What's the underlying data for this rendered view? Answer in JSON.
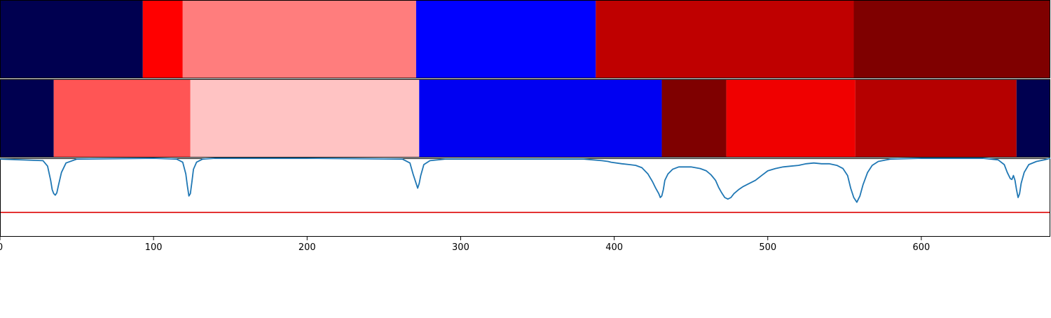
{
  "chart_data": {
    "type": "heatmap",
    "title": "",
    "xlabel": "",
    "ylabel": "",
    "xlim": [
      0,
      684
    ],
    "x_ticks": [
      0,
      100,
      200,
      300,
      400,
      500,
      600
    ],
    "x_tick_labels": [
      "0",
      "100",
      "200",
      "300",
      "400",
      "500",
      "600"
    ],
    "grid": false,
    "legend": "none",
    "segment_rows": [
      {
        "segments": [
          {
            "start": 0,
            "end": 93,
            "color": "#000050"
          },
          {
            "start": 93,
            "end": 119,
            "color": "#ff0000"
          },
          {
            "start": 119,
            "end": 271,
            "color": "#ff7d7d"
          },
          {
            "start": 271,
            "end": 388,
            "color": "#0000ff"
          },
          {
            "start": 388,
            "end": 556,
            "color": "#bf0000"
          },
          {
            "start": 556,
            "end": 684,
            "color": "#7f0000"
          }
        ]
      },
      {
        "segments": [
          {
            "start": 0,
            "end": 35,
            "color": "#000050"
          },
          {
            "start": 35,
            "end": 124,
            "color": "#ff5555"
          },
          {
            "start": 124,
            "end": 273,
            "color": "#ffc3c3"
          },
          {
            "start": 273,
            "end": 431,
            "color": "#0000f2"
          },
          {
            "start": 431,
            "end": 473,
            "color": "#7f0000"
          },
          {
            "start": 473,
            "end": 557,
            "color": "#f00000"
          },
          {
            "start": 557,
            "end": 662,
            "color": "#b50000"
          },
          {
            "start": 662,
            "end": 684,
            "color": "#000050"
          }
        ]
      }
    ],
    "line_panel": {
      "ylim": [
        0,
        1
      ],
      "threshold": 0.31,
      "threshold_color": "#dd0000",
      "line_color": "#1f77b4",
      "series": [
        {
          "x": [
            0,
            28,
            31,
            33,
            34,
            35,
            36,
            37,
            38,
            40,
            43,
            50,
            100,
            115,
            119,
            121,
            122,
            123,
            124,
            125,
            126,
            128,
            132,
            140,
            200,
            262,
            267,
            269,
            271,
            272,
            273,
            274,
            276,
            280,
            290,
            380,
            392,
            396,
            398,
            405,
            410,
            414,
            418,
            422,
            425,
            427,
            429,
            430,
            431,
            432,
            433,
            435,
            438,
            442,
            446,
            450,
            456,
            460,
            463,
            466,
            468,
            470,
            472,
            474,
            476,
            478,
            481,
            484,
            488,
            492,
            496,
            500,
            505,
            510,
            515,
            520,
            525,
            530,
            535,
            540,
            545,
            549,
            552,
            554,
            556,
            558,
            560,
            562,
            565,
            568,
            572,
            580,
            600,
            640,
            650,
            654,
            656,
            658,
            659,
            660,
            661,
            662,
            663,
            664,
            665,
            667,
            670,
            675,
            680,
            684
          ],
          "y": [
            0.99,
            0.97,
            0.9,
            0.72,
            0.6,
            0.55,
            0.53,
            0.56,
            0.65,
            0.82,
            0.94,
            0.99,
            1.0,
            0.99,
            0.95,
            0.8,
            0.65,
            0.52,
            0.55,
            0.7,
            0.86,
            0.95,
            0.99,
            1.0,
            1.0,
            0.99,
            0.94,
            0.8,
            0.68,
            0.62,
            0.68,
            0.78,
            0.92,
            0.97,
            0.99,
            0.99,
            0.97,
            0.96,
            0.95,
            0.93,
            0.92,
            0.91,
            0.88,
            0.8,
            0.7,
            0.62,
            0.55,
            0.5,
            0.52,
            0.6,
            0.72,
            0.8,
            0.86,
            0.89,
            0.89,
            0.89,
            0.87,
            0.84,
            0.79,
            0.72,
            0.63,
            0.56,
            0.5,
            0.48,
            0.5,
            0.55,
            0.6,
            0.64,
            0.68,
            0.72,
            0.78,
            0.84,
            0.87,
            0.89,
            0.9,
            0.91,
            0.93,
            0.94,
            0.93,
            0.93,
            0.91,
            0.87,
            0.78,
            0.62,
            0.5,
            0.44,
            0.52,
            0.66,
            0.82,
            0.91,
            0.96,
            0.99,
            1.0,
            1.0,
            0.98,
            0.92,
            0.82,
            0.74,
            0.73,
            0.78,
            0.72,
            0.6,
            0.5,
            0.55,
            0.68,
            0.82,
            0.92,
            0.96,
            0.98,
            1.0
          ]
        }
      ]
    },
    "colors": {
      "axis": "#000000",
      "background": "#ffffff"
    }
  }
}
